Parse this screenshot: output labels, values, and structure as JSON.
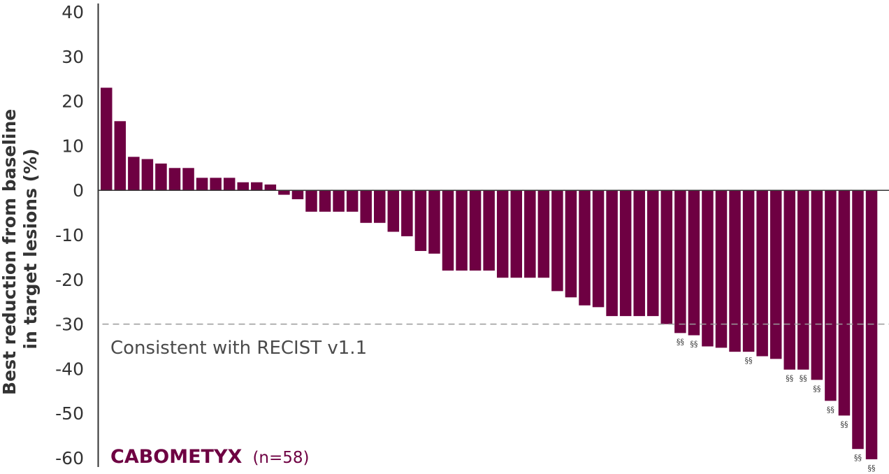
{
  "colors": {
    "bar": "#6e0042",
    "axis": "#333333",
    "threshold": "#9a9a9a",
    "brand": "#6e0042"
  },
  "chart_data": {
    "type": "bar",
    "ylabel": "Best reduction from baseline in target lesions (%)",
    "ylabel_lines": [
      "Best reduction from baseline",
      "in target lesions (%)"
    ],
    "ylim": [
      -60,
      40
    ],
    "yticks": [
      40,
      30,
      20,
      10,
      0,
      -10,
      -20,
      -30,
      -40,
      -50,
      -60
    ],
    "grid": false,
    "values": [
      23,
      15.5,
      7.5,
      7,
      6,
      5,
      5,
      2.8,
      2.8,
      2.8,
      1.8,
      1.8,
      1.3,
      -1,
      -2,
      -4.8,
      -4.8,
      -4.8,
      -4.8,
      -7.3,
      -7.3,
      -9.3,
      -10.3,
      -13.6,
      -14.2,
      -18,
      -18,
      -18,
      -18,
      -19.6,
      -19.6,
      -19.6,
      -19.6,
      -22.6,
      -24,
      -25.8,
      -26.2,
      -28.2,
      -28.2,
      -28.2,
      -28.2,
      -30,
      -32,
      -32.5,
      -35,
      -35.3,
      -36.2,
      -36.2,
      -37.2,
      -37.8,
      -40.2,
      -40.2,
      -42.5,
      -47.2,
      -50.5,
      -58,
      -60.3
    ],
    "markers": [
      {
        "index": 42,
        "text": "§§"
      },
      {
        "index": 43,
        "text": "§§"
      },
      {
        "index": 47,
        "text": "§§"
      },
      {
        "index": 50,
        "text": "§§"
      },
      {
        "index": 51,
        "text": "§§"
      },
      {
        "index": 52,
        "text": "§§"
      },
      {
        "index": 53,
        "text": "§§"
      },
      {
        "index": 54,
        "text": "§§"
      },
      {
        "index": 55,
        "text": "§§"
      },
      {
        "index": 56,
        "text": "§§"
      }
    ],
    "threshold": {
      "value": -30,
      "label": "Consistent with RECIST v1.1"
    },
    "legend": {
      "name": "CABOMETYX",
      "n": "(n=58)"
    }
  }
}
